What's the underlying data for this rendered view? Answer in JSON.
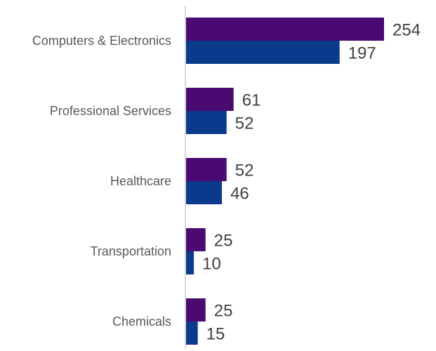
{
  "chart_data": {
    "type": "bar",
    "orientation": "horizontal",
    "categories": [
      "Computers & Electronics",
      "Professional Services",
      "Healthcare",
      "Transportation",
      "Chemicals"
    ],
    "series": [
      {
        "values": [
          254,
          61,
          52,
          25,
          25
        ],
        "color": "#4b0a72"
      },
      {
        "values": [
          197,
          52,
          46,
          10,
          15
        ],
        "color": "#0a3a8c"
      }
    ],
    "xlim": [
      0,
      254
    ],
    "grid": false,
    "legend": "none",
    "axis_color": "#d9d9d9"
  }
}
